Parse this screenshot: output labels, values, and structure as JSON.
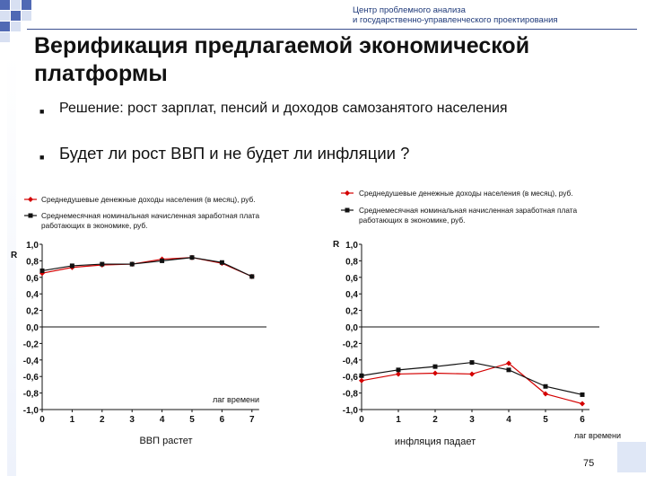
{
  "header": {
    "org_line1": "Центр проблемного анализа",
    "org_line2": "и государственно-управленческого проектирования"
  },
  "slide": {
    "title": "Верификация предлагаемой экономической платформы",
    "bullets": [
      "Решение: рост зарплат, пенсий и доходов самозанятого населения",
      "Будет ли рост ВВП и не будет ли инфляции ?"
    ],
    "page_number": "75"
  },
  "colors": {
    "series1": "#d40000",
    "series2": "#111111",
    "accent": "#1f3a7a"
  },
  "chart_data": [
    {
      "type": "line",
      "legend": [
        "Среднедушевые денежные доходы населения (в месяц), руб.",
        "Среднемесячная номинальная начисленная заработная плата работающих в экономике, руб."
      ],
      "ylabel": "R",
      "xlabel": "лаг времени",
      "caption": "ВВП растет",
      "ylim": [
        -1.0,
        1.0
      ],
      "yticks": [
        "1,0",
        "0,8",
        "0,6",
        "0,4",
        "0,2",
        "0,0",
        "-0,2",
        "-0,4",
        "-0,6",
        "-0,8",
        "-1,0"
      ],
      "x": [
        0,
        1,
        2,
        3,
        4,
        5,
        6,
        7
      ],
      "series": [
        {
          "name": "Среднедушевые денежные доходы населения (в месяц), руб.",
          "color": "#d40000",
          "marker": "diamond",
          "values": [
            0.65,
            0.72,
            0.75,
            0.76,
            0.82,
            0.84,
            0.77,
            0.61
          ]
        },
        {
          "name": "Среднемесячная номинальная начисленная заработная плата работающих в экономике, руб.",
          "color": "#111111",
          "marker": "square",
          "values": [
            0.68,
            0.74,
            0.76,
            0.76,
            0.8,
            0.84,
            0.78,
            0.61
          ]
        }
      ]
    },
    {
      "type": "line",
      "legend": [
        "Среднедушевые денежные доходы населения (в месяц), руб.",
        "Среднемесячная номинальная начисленная заработная плата работающих в экономике, руб."
      ],
      "ylabel": "R",
      "xlabel": "лаг времени",
      "caption": "инфляция падает",
      "ylim": [
        -1.0,
        1.0
      ],
      "yticks": [
        "1,0",
        "0,8",
        "0,6",
        "0,4",
        "0,2",
        "0,0",
        "-0,2",
        "-0,4",
        "-0,6",
        "-0,8",
        "-1,0"
      ],
      "x": [
        0,
        1,
        2,
        3,
        4,
        5,
        6
      ],
      "series": [
        {
          "name": "Среднедушевые денежные доходы населения (в месяц), руб.",
          "color": "#d40000",
          "marker": "diamond",
          "values": [
            -0.65,
            -0.57,
            -0.56,
            -0.57,
            -0.44,
            -0.81,
            -0.93
          ]
        },
        {
          "name": "Среднемесячная номинальная начисленная заработная плата работающих в экономике, руб.",
          "color": "#111111",
          "marker": "square",
          "values": [
            -0.59,
            -0.52,
            -0.48,
            -0.43,
            -0.52,
            -0.72,
            -0.82
          ]
        }
      ]
    }
  ]
}
